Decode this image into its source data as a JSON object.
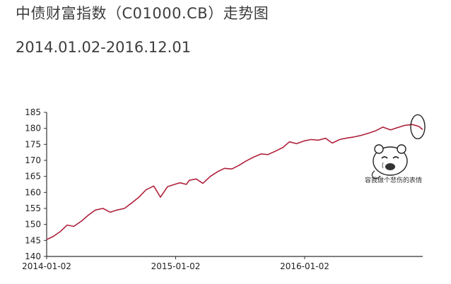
{
  "header": {
    "title": "中债财富指数（C01000.CB）走势图",
    "subtitle": "2014.01.02-2016.12.01"
  },
  "sticker": {
    "caption": "容我做个悲伤的表情",
    "icon": "sad-bear-icon"
  },
  "colors": {
    "line": "#b0203a",
    "axis": "#333333",
    "circle": "#222222"
  },
  "chart_data": {
    "type": "line",
    "title": "中债财富指数（C01000.CB）走势图",
    "subtitle": "2014.01.02-2016.12.01",
    "xlabel": "",
    "ylabel": "",
    "ylim": [
      140,
      185
    ],
    "yticks": [
      140,
      145,
      150,
      155,
      160,
      165,
      170,
      175,
      180,
      185
    ],
    "xticks": [
      "2014-01-02",
      "2015-01-02",
      "2016-01-02"
    ],
    "xlim": [
      "2014-01-02",
      "2016-12-01"
    ],
    "grid": false,
    "legend": "none",
    "series": [
      {
        "name": "",
        "x": [
          "2014-01-02",
          "2014-01-20",
          "2014-02-10",
          "2014-03-01",
          "2014-03-20",
          "2014-04-10",
          "2014-05-01",
          "2014-05-20",
          "2014-06-10",
          "2014-07-01",
          "2014-07-20",
          "2014-08-10",
          "2014-09-01",
          "2014-09-20",
          "2014-10-10",
          "2014-11-01",
          "2014-11-20",
          "2014-12-10",
          "2015-01-02",
          "2015-01-15",
          "2015-02-01",
          "2015-02-10",
          "2015-03-01",
          "2015-03-20",
          "2015-04-10",
          "2015-05-01",
          "2015-05-20",
          "2015-06-10",
          "2015-07-01",
          "2015-07-20",
          "2015-08-10",
          "2015-09-01",
          "2015-09-20",
          "2015-10-10",
          "2015-11-01",
          "2015-11-20",
          "2015-12-10",
          "2016-01-02",
          "2016-01-20",
          "2016-02-10",
          "2016-03-01",
          "2016-03-20",
          "2016-04-10",
          "2016-05-01",
          "2016-05-20",
          "2016-06-10",
          "2016-07-01",
          "2016-07-20",
          "2016-08-10",
          "2016-09-01",
          "2016-09-20",
          "2016-10-10",
          "2016-11-01",
          "2016-11-20",
          "2016-12-01"
        ],
        "values": [
          145.3,
          146.2,
          147.8,
          149.8,
          149.4,
          151.0,
          153.0,
          154.5,
          155.0,
          153.8,
          154.5,
          155.0,
          156.8,
          158.5,
          160.8,
          162.0,
          158.5,
          161.8,
          162.6,
          163.0,
          162.5,
          163.8,
          164.2,
          162.8,
          165.0,
          166.5,
          167.5,
          167.3,
          168.5,
          169.8,
          171.0,
          172.0,
          171.8,
          172.8,
          174.0,
          175.8,
          175.2,
          176.1,
          176.5,
          176.3,
          176.9,
          175.4,
          176.5,
          177.0,
          177.3,
          177.8,
          178.5,
          179.2,
          180.4,
          179.5,
          180.2,
          180.9,
          181.2,
          180.6,
          179.6
        ]
      }
    ]
  }
}
